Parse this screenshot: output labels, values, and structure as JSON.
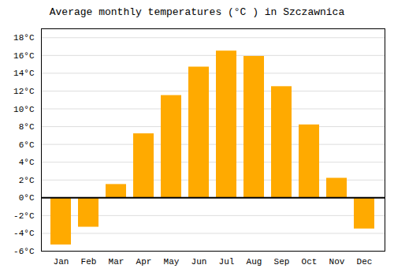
{
  "chart_data": {
    "type": "bar",
    "title": "Average monthly temperatures (°C ) in Szczawnica",
    "categories": [
      "Jan",
      "Feb",
      "Mar",
      "Apr",
      "May",
      "Jun",
      "Jul",
      "Aug",
      "Sep",
      "Oct",
      "Nov",
      "Dec"
    ],
    "values": [
      -5.3,
      -3.3,
      1.5,
      7.2,
      11.5,
      14.7,
      16.5,
      15.9,
      12.5,
      8.2,
      2.2,
      -3.5
    ],
    "color": "#FFAA00",
    "ylim": [
      -6,
      19
    ],
    "yticks": [
      {
        "value": -6,
        "label": "-6°C"
      },
      {
        "value": -4,
        "label": "-4°C"
      },
      {
        "value": -2,
        "label": "-2°C"
      },
      {
        "value": 0,
        "label": "0°C"
      },
      {
        "value": 2,
        "label": "2°C"
      },
      {
        "value": 4,
        "label": "4°C"
      },
      {
        "value": 6,
        "label": "6°C"
      },
      {
        "value": 8,
        "label": "8°C"
      },
      {
        "value": 10,
        "label": "10°C"
      },
      {
        "value": 12,
        "label": "12°C"
      },
      {
        "value": 14,
        "label": "14°C"
      },
      {
        "value": 16,
        "label": "16°C"
      },
      {
        "value": 18,
        "label": "18°C"
      }
    ],
    "grid": true
  }
}
